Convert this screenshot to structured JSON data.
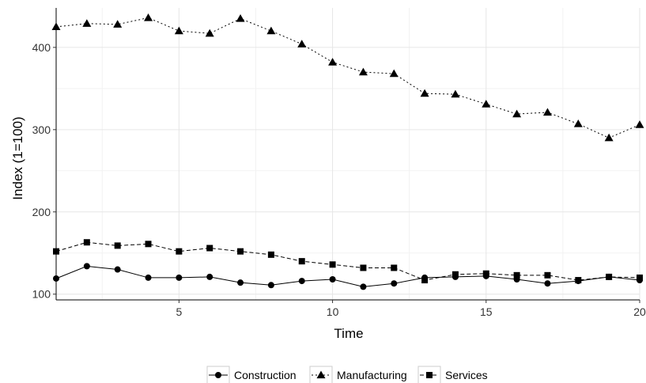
{
  "chart_data": {
    "type": "line",
    "title": "",
    "xlabel": "Time",
    "ylabel": "Index (1=100)",
    "xlim": [
      1,
      20
    ],
    "ylim": [
      93,
      448
    ],
    "xticks": [
      5,
      10,
      15,
      20
    ],
    "yticks": [
      100,
      200,
      300,
      400
    ],
    "grid": true,
    "legend_position": "bottom",
    "x": [
      1,
      2,
      3,
      4,
      5,
      6,
      7,
      8,
      9,
      10,
      11,
      12,
      13,
      14,
      15,
      16,
      17,
      18,
      19,
      20
    ],
    "series": [
      {
        "name": "Construction",
        "marker": "circle",
        "line_style": "solid",
        "values": [
          119,
          134,
          130,
          120,
          120,
          121,
          114,
          111,
          116,
          118,
          109,
          113,
          120,
          121,
          122,
          118,
          113,
          116,
          121,
          117
        ]
      },
      {
        "name": "Manufacturing",
        "marker": "triangle",
        "line_style": "dotted",
        "values": [
          425,
          429,
          428,
          436,
          420,
          417,
          435,
          420,
          404,
          382,
          370,
          368,
          344,
          343,
          331,
          319,
          321,
          307,
          290,
          306
        ]
      },
      {
        "name": "Services",
        "marker": "square",
        "line_style": "dashed",
        "values": [
          152,
          163,
          159,
          161,
          152,
          156,
          152,
          148,
          140,
          136,
          132,
          132,
          117,
          124,
          125,
          123,
          123,
          117,
          121,
          120
        ]
      }
    ],
    "colors": {
      "line": "#000000",
      "grid": "#e6e6e6",
      "axis": "#000000"
    }
  }
}
